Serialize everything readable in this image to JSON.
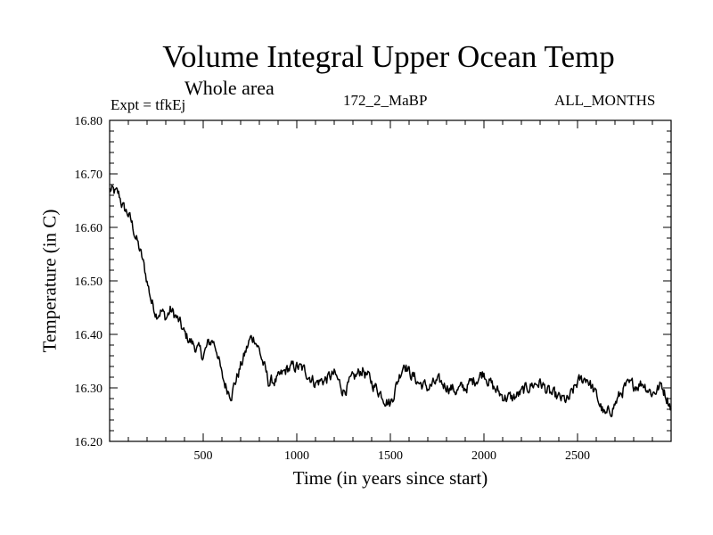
{
  "chart_data": {
    "type": "line",
    "title": "Volume Integral Upper Ocean Temp",
    "subtitle": "Whole area",
    "annotations": {
      "expt": "Expt = tfkEj",
      "run": "172_2_MaBP",
      "months": "ALL_MONTHS"
    },
    "xlabel": "Time (in years since start)",
    "ylabel": "Temperature (in C)",
    "xlim": [
      0,
      3000
    ],
    "ylim": [
      16.2,
      16.8
    ],
    "x_ticks": [
      "500",
      "1000",
      "1500",
      "2000",
      "2500"
    ],
    "y_ticks": [
      "16.20",
      "16.30",
      "16.40",
      "16.50",
      "16.60",
      "16.70",
      "16.80"
    ],
    "grid": false,
    "legend": "none",
    "series": [
      {
        "color": "#000000",
        "x": [
          0,
          25,
          50,
          75,
          100,
          125,
          150,
          175,
          200,
          225,
          250,
          275,
          300,
          325,
          350,
          375,
          400,
          450,
          500,
          525,
          550,
          575,
          600,
          625,
          650,
          700,
          750,
          775,
          800,
          850,
          900,
          950,
          1000,
          1050,
          1100,
          1150,
          1200,
          1250,
          1300,
          1350,
          1400,
          1450,
          1500,
          1550,
          1575,
          1600,
          1650,
          1700,
          1750,
          1800,
          1850,
          1900,
          1950,
          2000,
          2050,
          2100,
          2150,
          2200,
          2250,
          2300,
          2350,
          2400,
          2450,
          2500,
          2550,
          2600,
          2650,
          2700,
          2750,
          2800,
          2850,
          2900,
          2950,
          3000
        ],
        "y": [
          16.67,
          16.665,
          16.66,
          16.635,
          16.625,
          16.6,
          16.57,
          16.54,
          16.5,
          16.46,
          16.44,
          16.445,
          16.43,
          16.445,
          16.435,
          16.42,
          16.4,
          16.38,
          16.36,
          16.38,
          16.39,
          16.37,
          16.32,
          16.3,
          16.29,
          16.34,
          16.39,
          16.395,
          16.37,
          16.31,
          16.315,
          16.335,
          16.34,
          16.33,
          16.31,
          16.315,
          16.325,
          16.295,
          16.315,
          16.335,
          16.31,
          16.29,
          16.27,
          16.325,
          16.35,
          16.33,
          16.31,
          16.3,
          16.31,
          16.305,
          16.295,
          16.3,
          16.315,
          16.33,
          16.3,
          16.285,
          16.28,
          16.29,
          16.305,
          16.31,
          16.29,
          16.28,
          16.275,
          16.31,
          16.32,
          16.285,
          16.245,
          16.27,
          16.3,
          16.305,
          16.31,
          16.29,
          16.305,
          16.265
        ]
      }
    ]
  }
}
